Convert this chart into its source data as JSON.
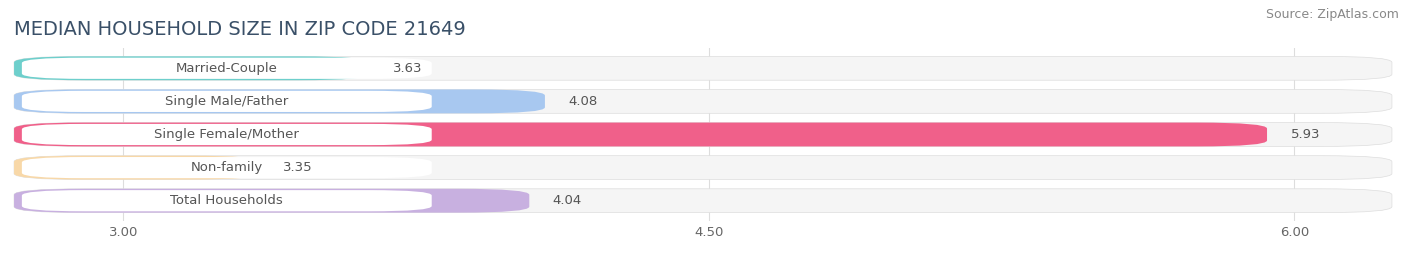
{
  "title": "MEDIAN HOUSEHOLD SIZE IN ZIP CODE 21649",
  "source": "Source: ZipAtlas.com",
  "categories": [
    "Married-Couple",
    "Single Male/Father",
    "Single Female/Mother",
    "Non-family",
    "Total Households"
  ],
  "values": [
    3.63,
    4.08,
    5.93,
    3.35,
    4.04
  ],
  "bar_colors": [
    "#6ecfcc",
    "#a8c8f0",
    "#f0608a",
    "#f8d8a8",
    "#c8b0e0"
  ],
  "bar_bg_color": "#efefef",
  "xlim_min": 2.72,
  "xlim_max": 6.25,
  "xticks": [
    3.0,
    4.5,
    6.0
  ],
  "xtick_labels": [
    "3.00",
    "4.50",
    "6.00"
  ],
  "background_color": "#ffffff",
  "row_bg_color": "#f5f5f5",
  "title_fontsize": 14,
  "label_fontsize": 9.5,
  "value_fontsize": 9.5,
  "source_fontsize": 9,
  "title_color": "#3a5068",
  "label_color": "#555555",
  "value_color": "#555555",
  "source_color": "#888888"
}
